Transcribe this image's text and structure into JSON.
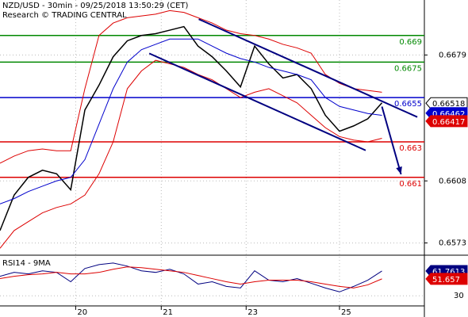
{
  "chart_data": {
    "type": "line",
    "title": "NZD/USD - 30min - 09/25/2018 13:50:29 (CET)",
    "subtitle": "Research © TRADING CENTRAL",
    "x": [
      0,
      2,
      4,
      6,
      8,
      10,
      12,
      14,
      16,
      18,
      20,
      22,
      24,
      26,
      28,
      30,
      32,
      34,
      36,
      38,
      40,
      42,
      44,
      46,
      48,
      50,
      52,
      54
    ],
    "xlim": [
      0,
      60
    ],
    "xticks": [
      {
        "value": 10.7,
        "label": "20"
      },
      {
        "value": 22.8,
        "label": "21"
      },
      {
        "value": 34.8,
        "label": "23"
      },
      {
        "value": 48,
        "label": "25"
      }
    ],
    "ylim": [
      0.6567,
      0.671
    ],
    "yticks": [
      0.6679,
      0.6608,
      0.6573
    ],
    "series": [
      {
        "name": "Price",
        "color": "#000000",
        "values": [
          0.658,
          0.66,
          0.661,
          0.6614,
          0.6612,
          0.6603,
          0.6648,
          0.6662,
          0.6678,
          0.6687,
          0.669,
          0.6691,
          0.6693,
          0.6695,
          0.6684,
          0.6678,
          0.667,
          0.6661,
          0.6684,
          0.6674,
          0.6666,
          0.6668,
          0.666,
          0.6645,
          0.6636,
          0.6639,
          0.6643,
          0.6652
        ]
      },
      {
        "name": "Upper band",
        "color": "#dd0000",
        "values": [
          0.6618,
          0.6622,
          0.6625,
          0.6626,
          0.6625,
          0.6625,
          0.666,
          0.669,
          0.6697,
          0.67,
          0.6701,
          0.6702,
          0.6704,
          0.6703,
          0.67,
          0.6697,
          0.6693,
          0.6691,
          0.669,
          0.6688,
          0.6685,
          0.6683,
          0.668,
          0.6668,
          0.6663,
          0.666,
          0.6659,
          0.6658
        ]
      },
      {
        "name": "Lower band",
        "color": "#dd0000",
        "values": [
          0.657,
          0.658,
          0.6585,
          0.659,
          0.6593,
          0.6595,
          0.66,
          0.6612,
          0.663,
          0.666,
          0.667,
          0.6676,
          0.6674,
          0.6672,
          0.6668,
          0.6665,
          0.666,
          0.6655,
          0.6658,
          0.666,
          0.6656,
          0.6652,
          0.6645,
          0.6638,
          0.6633,
          0.6631,
          0.663,
          0.6632
        ]
      },
      {
        "name": "MA",
        "color": "#0000cc",
        "values": [
          0.6595,
          0.6598,
          0.6602,
          0.6605,
          0.6608,
          0.661,
          0.662,
          0.664,
          0.666,
          0.6675,
          0.6682,
          0.6685,
          0.6688,
          0.6688,
          0.6688,
          0.6684,
          0.668,
          0.6677,
          0.6675,
          0.6672,
          0.667,
          0.6668,
          0.6665,
          0.6655,
          0.665,
          0.6648,
          0.6646,
          0.6645
        ]
      }
    ],
    "levels": [
      {
        "value": 0.669,
        "color": "#008800"
      },
      {
        "value": 0.6675,
        "color": "#008800"
      },
      {
        "value": 0.6655,
        "color": "#0000cc"
      },
      {
        "value": 0.663,
        "color": "#dd0000"
      },
      {
        "value": 0.661,
        "color": "#dd0000"
      }
    ],
    "trendlines": [
      {
        "color": "#000080",
        "x": [
          28.1,
          59
        ],
        "y": [
          0.66992,
          0.6644
        ]
      },
      {
        "color": "#000080",
        "x": [
          21.1,
          51.7
        ],
        "y": [
          0.66799,
          0.66252
        ]
      }
    ],
    "arrow": {
      "color": "#000080",
      "x": [
        54,
        56.7
      ],
      "y": [
        0.66499,
        0.66117
      ]
    },
    "price_markers": [
      {
        "value": 0.66518,
        "color": "#000000"
      },
      {
        "value": 0.66462,
        "color": "#0000cc"
      },
      {
        "value": 0.66417,
        "color": "#dd0000"
      }
    ],
    "rsi": {
      "title": "RSI14 - 9MA",
      "ylim": [
        17,
        80
      ],
      "yticks": [
        30
      ],
      "series": [
        {
          "name": "RSI",
          "color": "#000080",
          "values": [
            55,
            60,
            58,
            62,
            60,
            48,
            65,
            70,
            72,
            68,
            62,
            60,
            64,
            58,
            45,
            48,
            42,
            40,
            62,
            50,
            48,
            52,
            46,
            40,
            35,
            42,
            50,
            61.7613
          ]
        },
        {
          "name": "9MA",
          "color": "#dd0000",
          "values": [
            52,
            55,
            57,
            58,
            60,
            58,
            58,
            60,
            64,
            67,
            66,
            64,
            62,
            60,
            56,
            52,
            48,
            45,
            48,
            50,
            50,
            50,
            48,
            45,
            42,
            40,
            44,
            51.657
          ]
        }
      ]
    }
  }
}
